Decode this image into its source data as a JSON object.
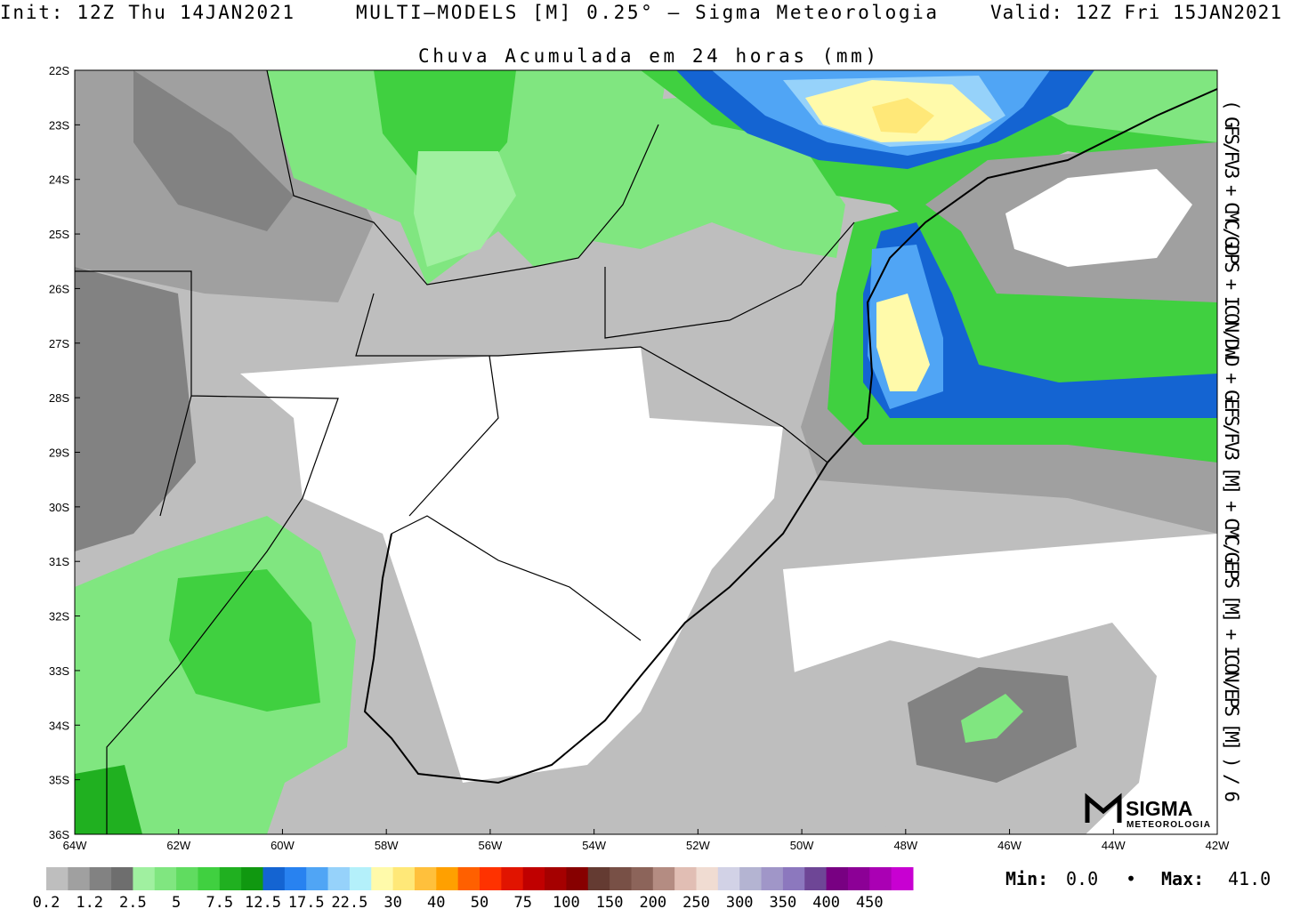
{
  "header": {
    "init": "Init: 12Z Thu 14JAN2021",
    "title": "MULTI–MODELS [M] 0.25° – Sigma Meteorologia",
    "valid": "Valid: 12Z Fri 15JAN2021",
    "subtitle": "Chuva Acumulada em 24 horas (mm)"
  },
  "side_label": "( GFS/FV3 + CMC/GDPS + ICON/DWD + GEFS/FV3 [M] + CMC/GEPS [M] + ICON/EPS [M] ) / 6",
  "map": {
    "lat_labels": [
      "22S",
      "23S",
      "24S",
      "25S",
      "26S",
      "27S",
      "28S",
      "29S",
      "30S",
      "31S",
      "32S",
      "33S",
      "34S",
      "35S",
      "36S"
    ],
    "lon_labels": [
      "64W",
      "62W",
      "60W",
      "58W",
      "56W",
      "54W",
      "52W",
      "50W",
      "48W",
      "46W",
      "44W",
      "42W"
    ]
  },
  "legend": {
    "colors": [
      "#bebebe",
      "#a0a0a0",
      "#828282",
      "#6e6e6e",
      "#a0f0a0",
      "#80e680",
      "#60dc60",
      "#40d040",
      "#20b020",
      "#109810",
      "#1464d2",
      "#2882f0",
      "#50a5f5",
      "#96d2fa",
      "#b4f0fa",
      "#fffaaa",
      "#ffe878",
      "#ffc03c",
      "#ffa000",
      "#ff6000",
      "#ff3200",
      "#e11400",
      "#c00000",
      "#a50000",
      "#870000",
      "#643b32",
      "#785046",
      "#8c645a",
      "#b48c82",
      "#e1beb4",
      "#f0dcd2",
      "#d2d2e6",
      "#b4b4d2",
      "#a096c8",
      "#8c78be",
      "#6e4696",
      "#780082",
      "#8c0096",
      "#aa00b4",
      "#c800d2"
    ],
    "labels": [
      "0.2",
      "1.2",
      "2.5",
      "5",
      "7.5",
      "12.5",
      "17.5",
      "22.5",
      "30",
      "40",
      "50",
      "75",
      "100",
      "150",
      "200",
      "250",
      "300",
      "350",
      "400",
      "450"
    ]
  },
  "stats": {
    "min_label": "Min:",
    "min": "0.0",
    "separator": "•",
    "max_label": "Max:",
    "max": "41.0"
  },
  "logo": {
    "name": "SIGMA",
    "sub": "METEOROLOGIA"
  }
}
